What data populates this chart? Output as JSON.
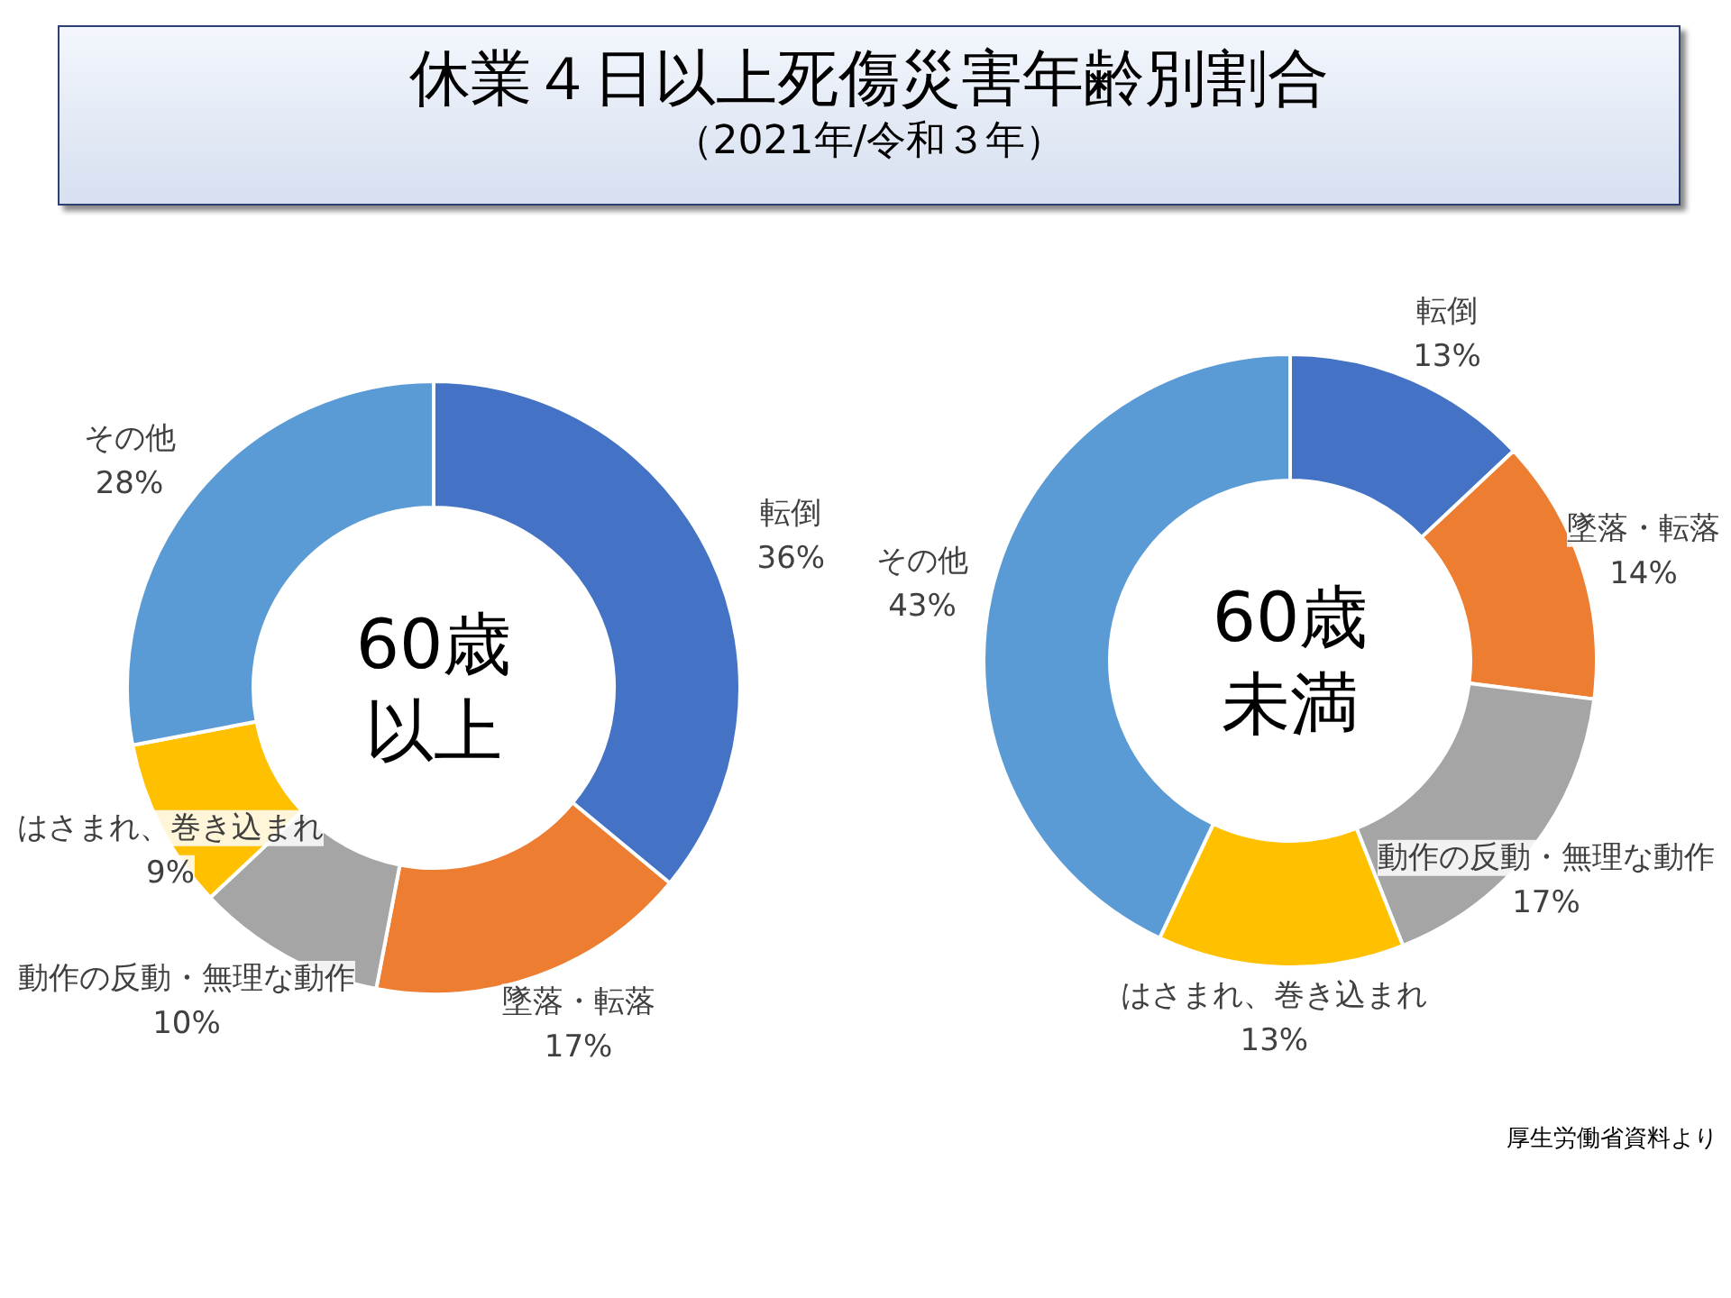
{
  "chart_data": [
    {
      "type": "donut",
      "title": "休業４日以上死傷災害年齢別割合",
      "subtitle": "（2021年/令和３年）",
      "annotations": [
        "60歳",
        "以上"
      ],
      "categories": [
        "転倒",
        "墜落・転落",
        "動作の反動・無理な動作",
        "はさまれ、巻き込まれ",
        "その他"
      ],
      "values": [
        36,
        17,
        10,
        9,
        28
      ],
      "value_labels": [
        "36%",
        "17%",
        "10%",
        "9%",
        "28%"
      ],
      "colors": [
        "#4472c4",
        "#ed7d31",
        "#a5a5a5",
        "#ffc000",
        "#5b9bd5"
      ]
    },
    {
      "type": "donut",
      "annotations": [
        "60歳",
        "未満",
        "厚生労働省資料より"
      ],
      "categories": [
        "転倒",
        "墜落・転落",
        "動作の反動・無理な動作",
        "はさまれ、巻き込まれ",
        "その他"
      ],
      "values": [
        13,
        14,
        17,
        13,
        43
      ],
      "value_labels": [
        "13%",
        "14%",
        "17%",
        "13%",
        "43%"
      ],
      "colors": [
        "#4472c4",
        "#ed7d31",
        "#a5a5a5",
        "#ffc000",
        "#5b9bd5"
      ]
    }
  ]
}
